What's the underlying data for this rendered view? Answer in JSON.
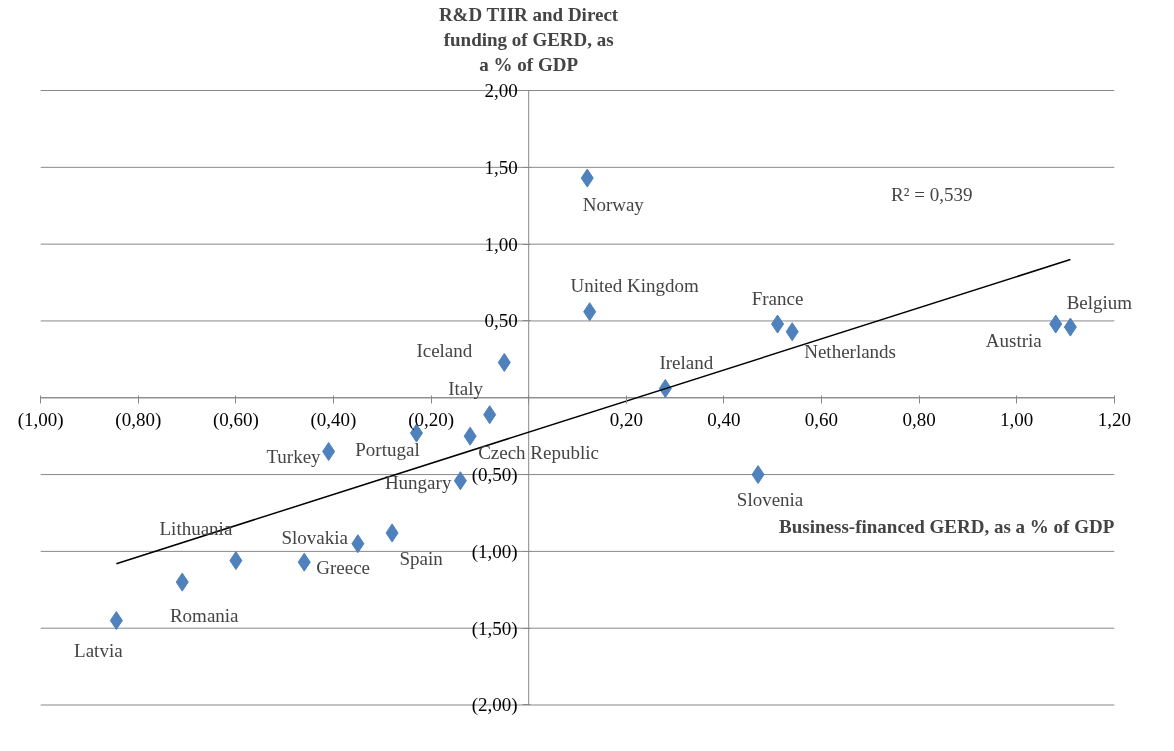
{
  "chart_data": {
    "type": "scatter",
    "ylabel": "R&D TIIR and Direct funding of GERD, as a % of GDP",
    "xlabel": "Business-financed GERD, as a % of GDP",
    "xlim": [
      -1.0,
      1.2
    ],
    "xticks": [
      {
        "value": -1.0,
        "label": "(1,00)"
      },
      {
        "value": -0.8,
        "label": "(0,80)"
      },
      {
        "value": -0.6,
        "label": "(0,60)"
      },
      {
        "value": -0.4,
        "label": "(0,40)"
      },
      {
        "value": -0.2,
        "label": "(0,20)"
      },
      {
        "value": 0,
        "label": null
      },
      {
        "value": 0.2,
        "label": "0,20"
      },
      {
        "value": 0.4,
        "label": "0,40"
      },
      {
        "value": 0.6,
        "label": "0,60"
      },
      {
        "value": 0.8,
        "label": "0,80"
      },
      {
        "value": 1.0,
        "label": "1,00"
      },
      {
        "value": 1.2,
        "label": "1,20"
      }
    ],
    "ylim": [
      -2.0,
      2.0
    ],
    "yticks": [
      {
        "value": -2.0,
        "label": "(2,00)"
      },
      {
        "value": -1.5,
        "label": "(1,50)"
      },
      {
        "value": -1.0,
        "label": "(1,00)"
      },
      {
        "value": -0.5,
        "label": "(0,50)"
      },
      {
        "value": 0,
        "label": null
      },
      {
        "value": 0.5,
        "label": "0,50"
      },
      {
        "value": 1.0,
        "label": "1,00"
      },
      {
        "value": 1.5,
        "label": "1,50"
      },
      {
        "value": 2.0,
        "label": "2,00"
      }
    ],
    "grid": "y",
    "marker": "diamond",
    "series": [
      {
        "color": "#4f81bd",
        "x": [
          0.12,
          0.125,
          0.51,
          0.54,
          1.08,
          1.11,
          -0.05,
          0.28,
          -0.08,
          -0.12,
          -0.23,
          -0.41,
          -0.14,
          0.47,
          -0.28,
          -0.35,
          -0.46,
          -0.6,
          -0.71,
          -0.845
        ],
        "values": [
          1.43,
          0.56,
          0.48,
          0.43,
          0.48,
          0.46,
          0.23,
          0.06,
          -0.11,
          -0.25,
          -0.23,
          -0.35,
          -0.54,
          -0.5,
          -0.88,
          -0.95,
          -1.07,
          -1.06,
          -1.2,
          -1.45
        ]
      },
      {
        "type": "line",
        "color": "#000000",
        "x": [
          -0.845,
          1.11
        ],
        "values": [
          -1.08,
          0.9
        ],
        "marker": "none"
      }
    ],
    "annotations": [
      "R² = 0,539",
      {
        "text": "Norway",
        "x": 0.12,
        "y": 1.43
      },
      {
        "text": "United Kingdom",
        "x": 0.125,
        "y": 0.56
      },
      {
        "text": "France",
        "x": 0.51,
        "y": 0.48
      },
      {
        "text": "Netherlands",
        "x": 0.54,
        "y": 0.43
      },
      {
        "text": "Austria",
        "x": 1.08,
        "y": 0.48
      },
      {
        "text": "Belgium",
        "x": 1.11,
        "y": 0.46
      },
      {
        "text": "Iceland",
        "x": -0.05,
        "y": 0.23
      },
      {
        "text": "Ireland",
        "x": 0.28,
        "y": 0.06
      },
      {
        "text": "Italy",
        "x": -0.08,
        "y": -0.11
      },
      {
        "text": "Czech Republic",
        "x": -0.12,
        "y": -0.25
      },
      {
        "text": "Portugal",
        "x": -0.23,
        "y": -0.23
      },
      {
        "text": "Turkey",
        "x": -0.41,
        "y": -0.35
      },
      {
        "text": "Hungary",
        "x": -0.14,
        "y": -0.54
      },
      {
        "text": "Slovenia",
        "x": 0.47,
        "y": -0.5
      },
      {
        "text": "Spain",
        "x": -0.28,
        "y": -0.88
      },
      {
        "text": "Slovakia",
        "x": -0.35,
        "y": -0.95
      },
      {
        "text": "Greece",
        "x": -0.46,
        "y": -1.07
      },
      {
        "text": "Lithuania",
        "x": -0.6,
        "y": -1.06
      },
      {
        "text": "Romania",
        "x": -0.71,
        "y": -1.2
      },
      {
        "text": "Latvia",
        "x": -0.845,
        "y": -1.45
      }
    ]
  }
}
